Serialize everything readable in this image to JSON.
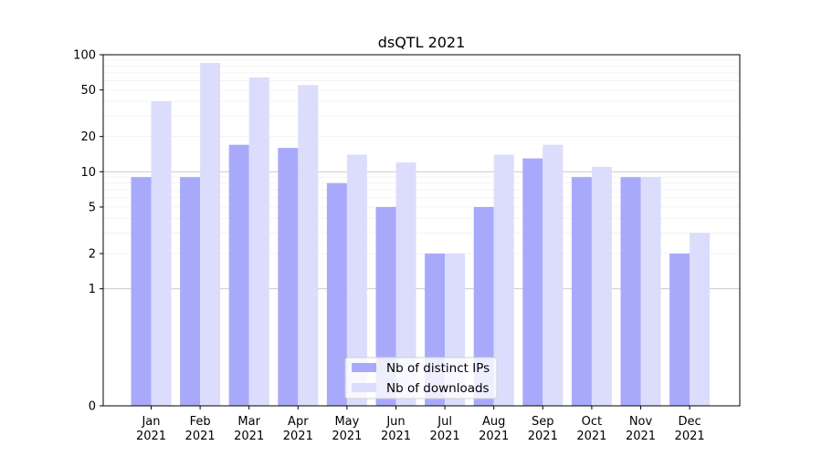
{
  "chart_data": {
    "type": "bar",
    "title": "dsQTL 2021",
    "xlabel": "",
    "ylabel": "",
    "yscale": "symlog",
    "ylim": [
      0,
      100
    ],
    "yticks": [
      0,
      1,
      2,
      5,
      10,
      20,
      50,
      100
    ],
    "ytick_labels": [
      "0",
      "1",
      "2",
      "5",
      "10",
      "20",
      "50",
      "100"
    ],
    "categories": [
      "Jan\n2021",
      "Feb\n2021",
      "Mar\n2021",
      "Apr\n2021",
      "May\n2021",
      "Jun\n2021",
      "Jul\n2021",
      "Aug\n2021",
      "Sep\n2021",
      "Oct\n2021",
      "Nov\n2021",
      "Dec\n2021"
    ],
    "month_labels": [
      "Jan",
      "Feb",
      "Mar",
      "Apr",
      "May",
      "Jun",
      "Jul",
      "Aug",
      "Sep",
      "Oct",
      "Nov",
      "Dec"
    ],
    "year_labels": [
      "2021",
      "2021",
      "2021",
      "2021",
      "2021",
      "2021",
      "2021",
      "2021",
      "2021",
      "2021",
      "2021",
      "2021"
    ],
    "series": [
      {
        "name": "Nb of distinct IPs",
        "color": "#a9a9fb",
        "values": [
          9,
          9,
          17,
          16,
          8,
          5,
          2,
          5,
          13,
          9,
          9,
          2
        ]
      },
      {
        "name": "Nb of downloads",
        "color": "#dcdcfd",
        "values": [
          40,
          85,
          64,
          55,
          14,
          12,
          2,
          14,
          17,
          11,
          9,
          3
        ]
      }
    ],
    "grid": true,
    "legend_position": "lower center"
  }
}
